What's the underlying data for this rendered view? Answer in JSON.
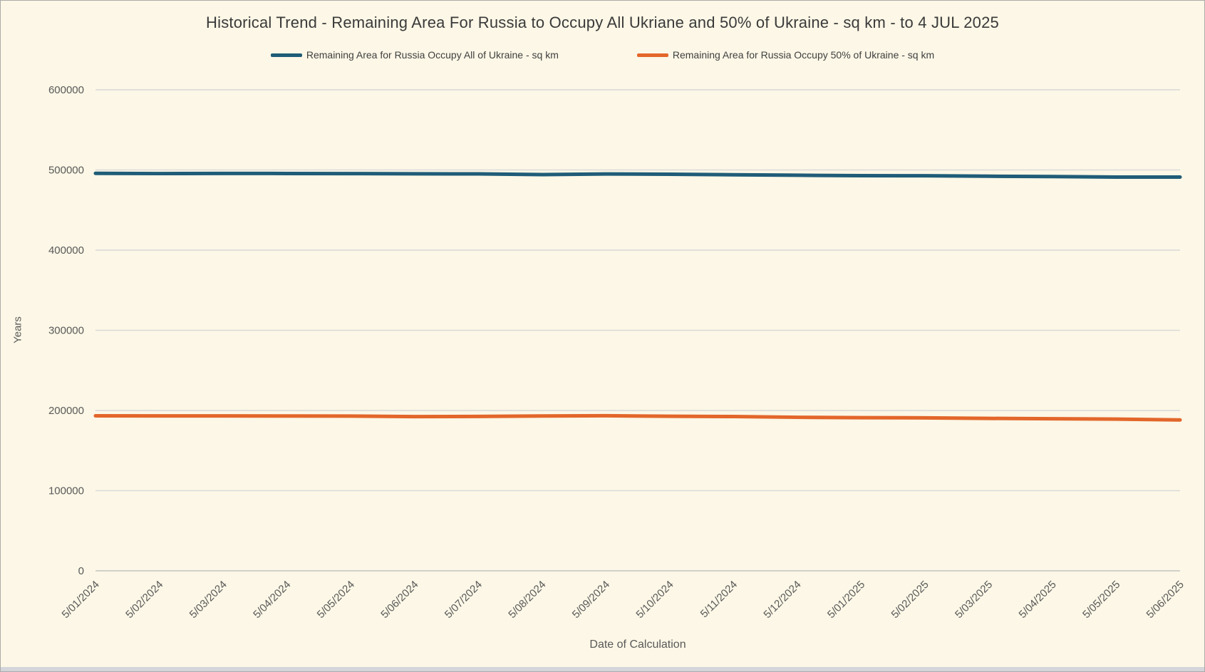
{
  "chart_data": {
    "type": "line",
    "title": "Historical Trend - Remaining Area For Russia to Occupy All Ukriane and 50% of Ukraine - sq km - to 4 JUL 2025",
    "xlabel": "Date of Calculation",
    "ylabel": "Years",
    "ylim": [
      0,
      600000
    ],
    "y_ticks": [
      0,
      100000,
      200000,
      300000,
      400000,
      500000,
      600000
    ],
    "grid": true,
    "legend_position": "top",
    "categories": [
      "5/01/2024",
      "5/02/2024",
      "5/03/2024",
      "5/04/2024",
      "5/05/2024",
      "5/06/2024",
      "5/07/2024",
      "5/08/2024",
      "5/09/2024",
      "5/10/2024",
      "5/11/2024",
      "5/12/2024",
      "5/01/2025",
      "5/02/2025",
      "5/03/2025",
      "5/04/2025",
      "5/05/2025",
      "5/06/2025"
    ],
    "series": [
      {
        "name": "Remaining Area for Russia Occupy All of Ukraine - sq km",
        "color": "#1F5C78",
        "values": [
          495800,
          495500,
          495700,
          495600,
          495500,
          495200,
          495100,
          494200,
          495000,
          494700,
          494000,
          493400,
          492900,
          492800,
          492200,
          491800,
          491100,
          491100
        ]
      },
      {
        "name": "Remaining Area for Russia Occupy 50% of Ukraine - sq km",
        "color": "#E3662A",
        "values": [
          193300,
          193200,
          193200,
          193100,
          193000,
          192300,
          192600,
          193100,
          193400,
          192800,
          192400,
          191500,
          191000,
          190800,
          190100,
          189700,
          189200,
          188200
        ]
      }
    ]
  },
  "colors": {
    "background": "#FCF7E6",
    "gridline": "#D9D9D9",
    "baseline": "#C3C3C3",
    "title_text": "#3A3A3A",
    "tick_text": "#595959"
  }
}
